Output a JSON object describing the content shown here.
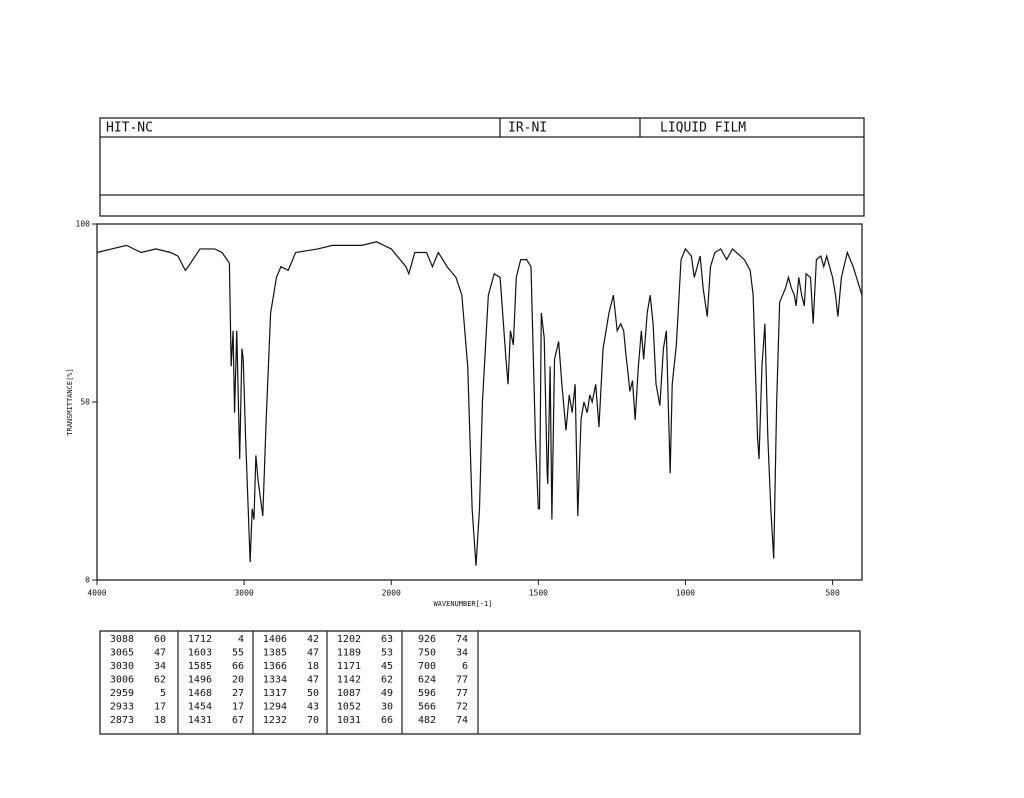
{
  "header": {
    "fields": [
      "HIT-NC",
      "IR-NI",
      "LIQUID FILM"
    ]
  },
  "chart_data": {
    "type": "line",
    "xlabel": "WAVENUMBER[-1]",
    "ylabel": "TRANSMITTANCE[%]",
    "xlim": [
      4000,
      400
    ],
    "ylim": [
      0,
      100
    ],
    "xscale_break": 2000,
    "xscale_factor": 2,
    "xticks": [
      4000,
      3000,
      2000,
      1500,
      1000,
      500
    ],
    "yticks": [
      0,
      50,
      100
    ],
    "color": "#111111",
    "x": [
      4000,
      3900,
      3800,
      3700,
      3600,
      3500,
      3450,
      3400,
      3380,
      3300,
      3200,
      3150,
      3100,
      3088,
      3075,
      3065,
      3050,
      3030,
      3015,
      3006,
      2990,
      2959,
      2945,
      2933,
      2920,
      2905,
      2873,
      2850,
      2820,
      2780,
      2750,
      2700,
      2650,
      2500,
      2400,
      2300,
      2200,
      2100,
      2050,
      2000,
      1950,
      1940,
      1920,
      1880,
      1860,
      1840,
      1810,
      1780,
      1760,
      1740,
      1725,
      1712,
      1700,
      1690,
      1670,
      1650,
      1630,
      1610,
      1603,
      1595,
      1585,
      1575,
      1560,
      1540,
      1525,
      1510,
      1500,
      1496,
      1490,
      1480,
      1470,
      1468,
      1460,
      1454,
      1445,
      1431,
      1420,
      1406,
      1395,
      1385,
      1375,
      1366,
      1355,
      1345,
      1334,
      1325,
      1317,
      1305,
      1294,
      1280,
      1260,
      1245,
      1232,
      1220,
      1210,
      1202,
      1195,
      1189,
      1180,
      1171,
      1160,
      1150,
      1142,
      1130,
      1120,
      1110,
      1100,
      1087,
      1075,
      1065,
      1052,
      1045,
      1031,
      1025,
      1015,
      1000,
      980,
      970,
      960,
      950,
      940,
      926,
      915,
      900,
      880,
      860,
      840,
      800,
      780,
      770,
      755,
      750,
      740,
      730,
      720,
      710,
      700,
      690,
      680,
      660,
      650,
      640,
      630,
      624,
      615,
      605,
      596,
      590,
      575,
      566,
      555,
      540,
      530,
      520,
      500,
      490,
      482,
      470,
      450,
      430,
      400
    ],
    "values": [
      92,
      93,
      94,
      92,
      93,
      92,
      91,
      87,
      88,
      93,
      93,
      92,
      89,
      60,
      70,
      47,
      70,
      34,
      65,
      62,
      40,
      5,
      20,
      17,
      35,
      28,
      18,
      45,
      75,
      85,
      88,
      87,
      92,
      93,
      94,
      94,
      94,
      95,
      94,
      93,
      88,
      86,
      92,
      92,
      88,
      92,
      88,
      85,
      80,
      60,
      20,
      4,
      20,
      50,
      80,
      86,
      85,
      62,
      55,
      70,
      66,
      85,
      90,
      90,
      88,
      40,
      20,
      20,
      75,
      68,
      30,
      27,
      60,
      17,
      62,
      67,
      55,
      42,
      52,
      47,
      55,
      18,
      45,
      50,
      47,
      52,
      50,
      55,
      43,
      65,
      75,
      80,
      70,
      72,
      70,
      63,
      58,
      53,
      56,
      45,
      60,
      70,
      62,
      75,
      80,
      72,
      55,
      49,
      65,
      70,
      30,
      55,
      66,
      75,
      90,
      93,
      91,
      85,
      88,
      91,
      82,
      74,
      88,
      92,
      93,
      90,
      93,
      90,
      87,
      80,
      40,
      34,
      60,
      72,
      40,
      20,
      6,
      50,
      78,
      82,
      85,
      82,
      80,
      77,
      85,
      80,
      77,
      86,
      85,
      72,
      90,
      91,
      88,
      91,
      85,
      80,
      74,
      85,
      92,
      88,
      80
    ]
  },
  "peak_table": {
    "rows": [
      [
        3088,
        60,
        1712,
        4,
        1406,
        42,
        1202,
        63,
        926,
        74
      ],
      [
        3065,
        47,
        1603,
        55,
        1385,
        47,
        1189,
        53,
        750,
        34
      ],
      [
        3030,
        34,
        1585,
        66,
        1366,
        18,
        1171,
        45,
        700,
        6
      ],
      [
        3006,
        62,
        1496,
        20,
        1334,
        47,
        1142,
        62,
        624,
        77
      ],
      [
        2959,
        5,
        1468,
        27,
        1317,
        50,
        1087,
        49,
        596,
        77
      ],
      [
        2933,
        17,
        1454,
        17,
        1294,
        43,
        1052,
        30,
        566,
        72
      ],
      [
        2873,
        18,
        1431,
        67,
        1232,
        70,
        1031,
        66,
        482,
        74
      ]
    ]
  }
}
